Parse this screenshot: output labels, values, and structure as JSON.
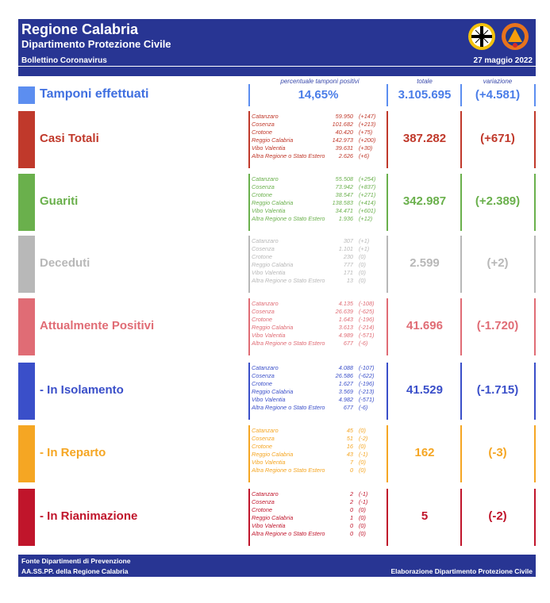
{
  "header": {
    "title": "Regione Calabria",
    "subtitle": "Dipartimento Protezione Civile",
    "bulletin": "Bollettino Coronavirus",
    "date": "27 maggio 2022"
  },
  "columns": {
    "pct_label": "percentuale tamponi positivi",
    "total_label": "totale",
    "var_label": "variazione"
  },
  "tamponi": {
    "label": "Tamponi effettuati",
    "pct": "14,65%",
    "total": "3.105.695",
    "variation": "(+4.581)"
  },
  "sections": [
    {
      "label": "Casi Totali",
      "color": "#c0392b",
      "total": "387.282",
      "variation": "(+671)",
      "rows": [
        {
          "name": "Catanzaro",
          "value": "59.950",
          "delta": "(+147)"
        },
        {
          "name": "Cosenza",
          "value": "101.682",
          "delta": "(+213)"
        },
        {
          "name": "Crotone",
          "value": "40.420",
          "delta": "(+75)"
        },
        {
          "name": "Reggio Calabria",
          "value": "142.973",
          "delta": "(+200)"
        },
        {
          "name": "Vibo Valentia",
          "value": "39.631",
          "delta": "(+30)"
        },
        {
          "name": "Altra Regione o Stato Estero",
          "value": "2.626",
          "delta": "(+6)"
        }
      ]
    },
    {
      "label": "Guariti",
      "color": "#6ab04c",
      "total": "342.987",
      "variation": "(+2.389)",
      "rows": [
        {
          "name": "Catanzaro",
          "value": "55.508",
          "delta": "(+254)"
        },
        {
          "name": "Cosenza",
          "value": "73.942",
          "delta": "(+837)"
        },
        {
          "name": "Crotone",
          "value": "38.547",
          "delta": "(+271)"
        },
        {
          "name": "Reggio Calabria",
          "value": "138.583",
          "delta": "(+414)"
        },
        {
          "name": "Vibo Valentia",
          "value": "34.471",
          "delta": "(+601)"
        },
        {
          "name": "Altra Regione o Stato Estero",
          "value": "1.936",
          "delta": "(+12)"
        }
      ]
    },
    {
      "label": "Deceduti",
      "color": "#b8b8b8",
      "total": "2.599",
      "variation": "(+2)",
      "rows": [
        {
          "name": "Catanzaro",
          "value": "307",
          "delta": "(+1)"
        },
        {
          "name": "Cosenza",
          "value": "1.101",
          "delta": "(+1)"
        },
        {
          "name": "Crotone",
          "value": "230",
          "delta": "(0)"
        },
        {
          "name": "Reggio Calabria",
          "value": "777",
          "delta": "(0)"
        },
        {
          "name": "Vibo Valentia",
          "value": "171",
          "delta": "(0)"
        },
        {
          "name": "Altra Regione o Stato Estero",
          "value": "13",
          "delta": "(0)"
        }
      ]
    },
    {
      "label": "Attualmente Positivi",
      "color": "#e06c75",
      "total": "41.696",
      "variation": "(-1.720)",
      "rows": [
        {
          "name": "Catanzaro",
          "value": "4.135",
          "delta": "(-108)"
        },
        {
          "name": "Cosenza",
          "value": "26.639",
          "delta": "(-625)"
        },
        {
          "name": "Crotone",
          "value": "1.643",
          "delta": "(-196)"
        },
        {
          "name": "Reggio Calabria",
          "value": "3.613",
          "delta": "(-214)"
        },
        {
          "name": "Vibo Valentia",
          "value": "4.989",
          "delta": "(-571)"
        },
        {
          "name": "Altra Regione o Stato Estero",
          "value": "677",
          "delta": "(-6)"
        }
      ]
    },
    {
      "label": " - In Isolamento",
      "color": "#3a4fc9",
      "total": "41.529",
      "variation": "(-1.715)",
      "rows": [
        {
          "name": "Catanzaro",
          "value": "4.088",
          "delta": "(-107)"
        },
        {
          "name": "Cosenza",
          "value": "26.586",
          "delta": "(-622)"
        },
        {
          "name": "Crotone",
          "value": "1.627",
          "delta": "(-196)"
        },
        {
          "name": "Reggio Calabria",
          "value": "3.569",
          "delta": "(-213)"
        },
        {
          "name": "Vibo Valentia",
          "value": "4.982",
          "delta": "(-571)"
        },
        {
          "name": "Altra Regione o Stato Estero",
          "value": "677",
          "delta": "(-6)"
        }
      ]
    },
    {
      "label": " - In Reparto",
      "color": "#f5a623",
      "total": "162",
      "variation": "(-3)",
      "rows": [
        {
          "name": "Catanzaro",
          "value": "45",
          "delta": "(0)"
        },
        {
          "name": "Cosenza",
          "value": "51",
          "delta": "(-2)"
        },
        {
          "name": "Crotone",
          "value": "16",
          "delta": "(0)"
        },
        {
          "name": "Reggio Calabria",
          "value": "43",
          "delta": "(-1)"
        },
        {
          "name": "Vibo Valentia",
          "value": "7",
          "delta": "(0)"
        },
        {
          "name": "Altra Regione o Stato Estero",
          "value": "0",
          "delta": "(0)"
        }
      ]
    },
    {
      "label": " - In Rianimazione",
      "color": "#c0152b",
      "total": "5",
      "variation": "(-2)",
      "rows": [
        {
          "name": "Catanzaro",
          "value": "2",
          "delta": "(-1)"
        },
        {
          "name": "Cosenza",
          "value": "2",
          "delta": "(-1)"
        },
        {
          "name": "Crotone",
          "value": "0",
          "delta": "(0)"
        },
        {
          "name": "Reggio Calabria",
          "value": "1",
          "delta": "(0)"
        },
        {
          "name": "Vibo Valentia",
          "value": "0",
          "delta": "(0)"
        },
        {
          "name": "Altra Regione o Stato Estero",
          "value": "0",
          "delta": "(0)"
        }
      ]
    }
  ],
  "footer": {
    "source1": "Fonte Dipartimenti di Prevenzione",
    "source2": "AA.SS.PP.  della Regione Calabria",
    "credit": "Elaborazione Dipartimento Protezione Civile"
  },
  "colors": {
    "navy": "#283593",
    "tamponi": "#5c8ef0"
  }
}
